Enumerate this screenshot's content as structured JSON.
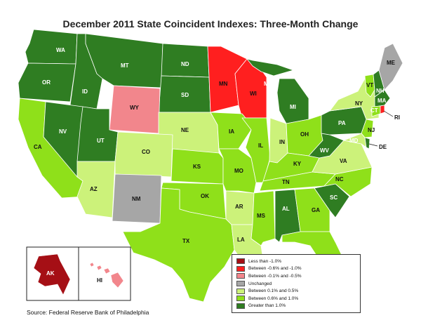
{
  "title": "December 2011 State Coincident Indexes: Three-Month Change",
  "source": "Source: Federal Reserve Bank of Philadelphia",
  "colors": {
    "lt_m1": "#a50f15",
    "m06_m1": "#ff1f1f",
    "m01_m05": "#f2868c",
    "unch": "#a6a6a6",
    "p01_p05": "#ccf27a",
    "p06_p1": "#8fe01a",
    "gt_p1": "#2f7d22",
    "ocean": "#ffffff",
    "border": "#ffffff"
  },
  "legend": [
    {
      "key": "lt_m1",
      "label": "Less than -1.0%"
    },
    {
      "key": "m06_m1",
      "label": "Between -0.6% and -1.0%"
    },
    {
      "key": "m01_m05",
      "label": "Between -0.1% and -0.5%"
    },
    {
      "key": "unch",
      "label": "Unchanged"
    },
    {
      "key": "p01_p05",
      "label": "Between 0.1% and 0.5%"
    },
    {
      "key": "p06_p1",
      "label": "Between 0.6% and 1.0%"
    },
    {
      "key": "gt_p1",
      "label": "Greater than 1.0%"
    }
  ],
  "states": {
    "WA": "gt_p1",
    "OR": "gt_p1",
    "ID": "gt_p1",
    "MT": "gt_p1",
    "ND": "gt_p1",
    "SD": "gt_p1",
    "WY": "m01_m05",
    "MN": "m06_m1",
    "WI": "m06_m1",
    "MI": "gt_p1",
    "CA": "p06_p1",
    "NV": "gt_p1",
    "UT": "gt_p1",
    "AZ": "p01_p05",
    "CO": "p01_p05",
    "NM": "unch",
    "NE": "p01_p05",
    "KS": "p06_p1",
    "OK": "p06_p1",
    "TX": "p06_p1",
    "IA": "p06_p1",
    "MO": "p06_p1",
    "AR": "p01_p05",
    "LA": "p01_p05",
    "IL": "p06_p1",
    "IN": "p01_p05",
    "OH": "p06_p1",
    "KY": "p06_p1",
    "TN": "p06_p1",
    "MS": "p06_p1",
    "AL": "gt_p1",
    "GA": "p06_p1",
    "FL": "p06_p1",
    "SC": "gt_p1",
    "NC": "p06_p1",
    "VA": "p01_p05",
    "WV": "gt_p1",
    "PA": "gt_p1",
    "NY": "p01_p05",
    "NJ": "p06_p1",
    "MD": "p01_p05",
    "DE": "gt_p1",
    "VT": "p06_p1",
    "NH": "gt_p1",
    "ME": "unch",
    "MA": "gt_p1",
    "CT": "p06_p1",
    "RI": "m06_m1",
    "AK": "lt_m1",
    "HI": "m01_m05"
  }
}
